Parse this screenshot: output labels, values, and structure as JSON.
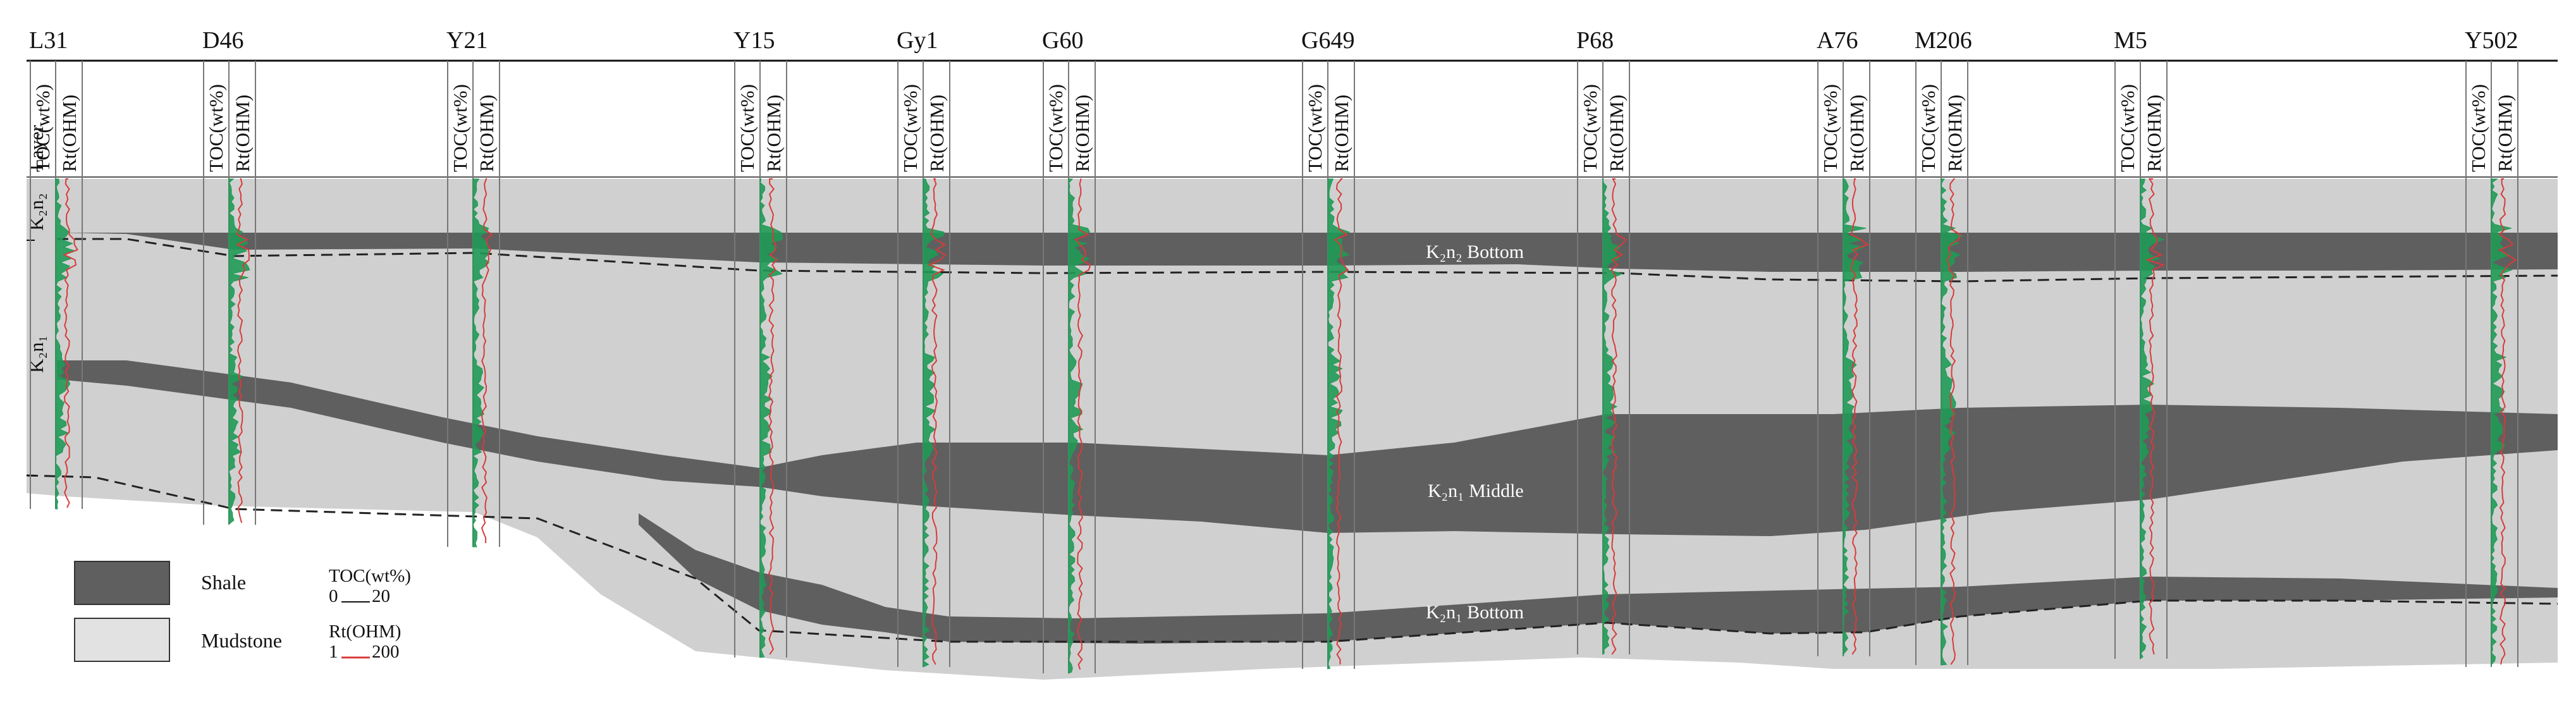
{
  "wells": [
    "L31",
    "D46",
    "Y21",
    "Y15",
    "Gy1",
    "G60",
    "G649",
    "P68",
    "A76",
    "M206",
    "M5",
    "Y502"
  ],
  "columns": {
    "layer": "Layer",
    "toc": "TOC(wt%)",
    "rt": "Rt(OHM)"
  },
  "layers": {
    "upper": "K₂n₂",
    "lower": "K₂n₁"
  },
  "units": {
    "n2_bottom": "K₂n₂ Bottom",
    "n1_middle": "K₂n₁ Middle",
    "n1_bottom": "K₂n₁ Bottom"
  },
  "legend": {
    "shale": "Shale",
    "mudstone": "Mudstone",
    "toc_title": "TOC(wt%)",
    "toc_min": "0",
    "toc_max": "20",
    "rt_title": "Rt(OHM)",
    "rt_min": "1",
    "rt_max": "200"
  },
  "colors": {
    "shale": "#5f5f5f",
    "mudstone": "#d0d0d0",
    "toc_curve": "#1f9a55",
    "rt_curve": "#d93a3a"
  }
}
